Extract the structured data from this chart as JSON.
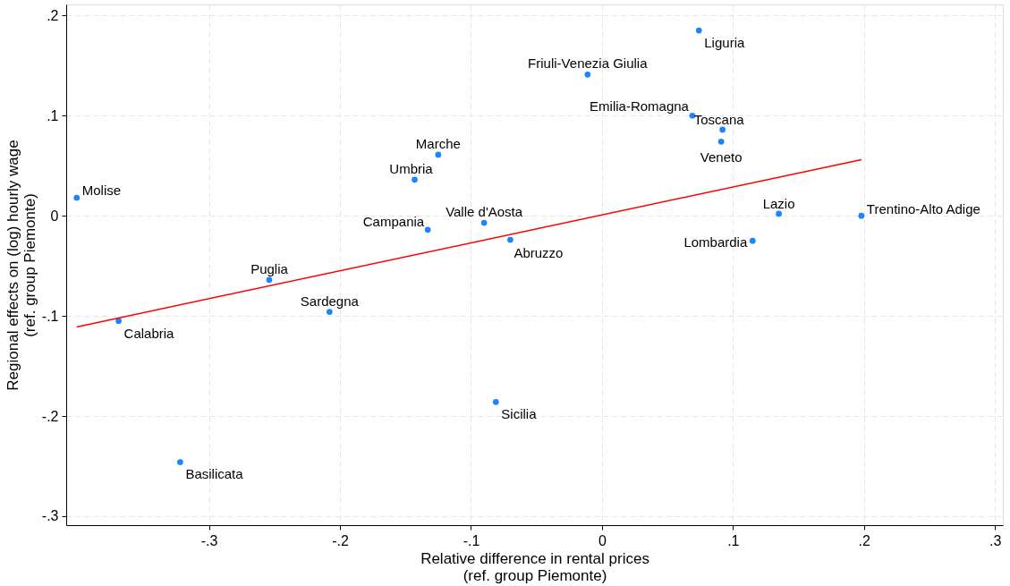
{
  "chart_data": {
    "type": "scatter",
    "xlabel": "Relative difference in rental prices\n(ref. group Piemonte)",
    "ylabel": "Regional effects on (log) hourly wage\n(ref. group Piemonte)",
    "xlim": [
      -0.409,
      0.306
    ],
    "ylim": [
      -0.309,
      0.211
    ],
    "xticks": [
      {
        "value": -0.3,
        "label": "-.3"
      },
      {
        "value": -0.2,
        "label": "-.2"
      },
      {
        "value": -0.1,
        "label": "-.1"
      },
      0,
      {
        "value": 0.1,
        "label": ".1"
      },
      {
        "value": 0.2,
        "label": ".2"
      },
      {
        "value": 0.3,
        "label": ".3"
      }
    ],
    "yticks": [
      {
        "value": -0.3,
        "label": "-.3"
      },
      {
        "value": -0.2,
        "label": "-.2"
      },
      {
        "value": -0.1,
        "label": "-.1"
      },
      0,
      {
        "value": 0.1,
        "label": ".1"
      },
      {
        "value": 0.2,
        "label": ".2"
      }
    ],
    "grid": true,
    "series": [
      {
        "marker": "circle",
        "color": "#1a85ff",
        "x": [
          -0.401,
          -0.369,
          -0.322,
          -0.254,
          -0.208,
          -0.143,
          -0.125,
          -0.133,
          -0.09,
          -0.07,
          -0.081,
          -0.011,
          0.069,
          0.074,
          0.092,
          0.091,
          0.135,
          0.115,
          0.198
        ],
        "values": [
          0.018,
          -0.105,
          -0.246,
          -0.064,
          -0.096,
          0.036,
          0.061,
          -0.014,
          -0.007,
          -0.024,
          -0.186,
          0.141,
          0.1,
          0.185,
          0.086,
          0.074,
          0.002,
          -0.025,
          0.0
        ],
        "value_labels": [
          "Molise",
          "Calabria",
          "Basilicata",
          "Puglia",
          "Sardegna",
          "Umbria",
          "Marche",
          "Campania",
          "Valle d'Aosta",
          "Abruzzo",
          "Sicilia",
          "Friuli-Venezia Giulia",
          "Emilia-Romagna",
          "Liguria",
          "Toscana",
          "Veneto",
          "Lazio",
          "Lombardia",
          "Trentino-Alto Adige"
        ]
      },
      {
        "type": "line",
        "marker": "none",
        "color": "#ff0000",
        "x": [
          -0.401,
          0.198
        ],
        "values": [
          -0.111,
          0.056
        ]
      }
    ]
  }
}
